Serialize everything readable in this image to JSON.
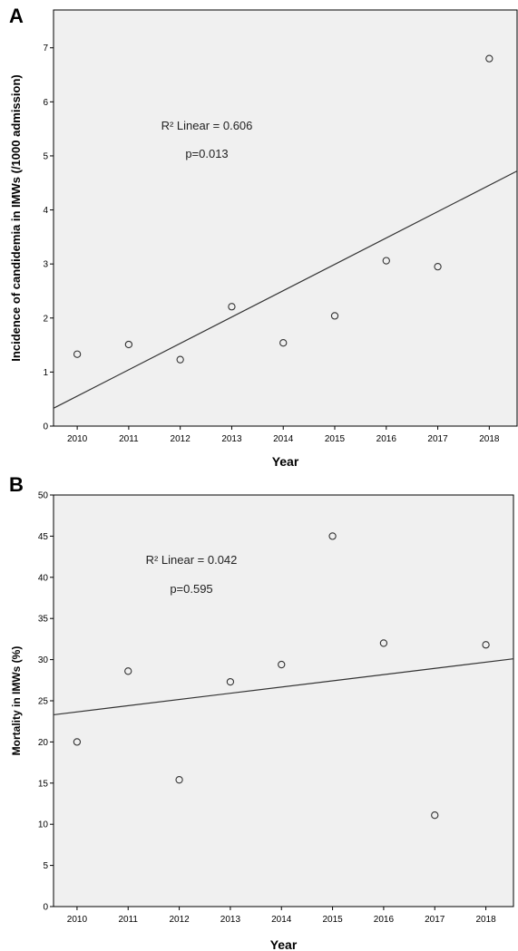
{
  "chart_data": [
    {
      "panel": "A",
      "type": "scatter",
      "xlabel": "Year",
      "ylabel": "Incidence of candidemia in IMWs (/1000 admission)",
      "xticks": [
        "2010",
        "2011",
        "2012",
        "2013",
        "2014",
        "2015",
        "2016",
        "2017",
        "2018"
      ],
      "yticks": [
        "0",
        "1",
        "2",
        "3",
        "4",
        "5",
        "6",
        "7"
      ],
      "xlim": [
        2009.54,
        2018.54
      ],
      "ylim": [
        0,
        7.7
      ],
      "x": [
        2010,
        2011,
        2012,
        2013,
        2014,
        2015,
        2016,
        2017,
        2018
      ],
      "y": [
        1.33,
        1.51,
        1.23,
        2.21,
        1.54,
        2.04,
        3.06,
        2.95,
        6.8
      ],
      "fit_line": {
        "x": [
          2009.54,
          2018.54
        ],
        "y": [
          0.33,
          4.72
        ]
      },
      "annotations": [
        "R² Linear = 0.606",
        "p=0.013"
      ],
      "grid": false
    },
    {
      "panel": "B",
      "type": "scatter",
      "xlabel": "Year",
      "ylabel": "Mortality in IMWs (%)",
      "xticks": [
        "2010",
        "2011",
        "2012",
        "2013",
        "2014",
        "2015",
        "2016",
        "2017",
        "2018"
      ],
      "yticks": [
        "0",
        "5",
        "10",
        "15",
        "20",
        "25",
        "30",
        "35",
        "40",
        "45",
        "50"
      ],
      "xlim": [
        2009.54,
        2018.54
      ],
      "ylim": [
        0,
        50
      ],
      "x": [
        2010,
        2011,
        2012,
        2013,
        2014,
        2015,
        2016,
        2017,
        2018
      ],
      "y": [
        20.0,
        28.6,
        15.4,
        27.3,
        29.4,
        45.0,
        32.0,
        11.1,
        31.8
      ],
      "fit_line": {
        "x": [
          2009.54,
          2018.54
        ],
        "y": [
          23.3,
          30.1
        ]
      },
      "annotations": [
        "R² Linear = 0.042",
        "p=0.595"
      ],
      "grid": false
    }
  ],
  "style": {
    "plot_background": "#f0f0f0",
    "frame_color": "#000000",
    "point_stroke": "#333333",
    "line_color": "#333333"
  }
}
